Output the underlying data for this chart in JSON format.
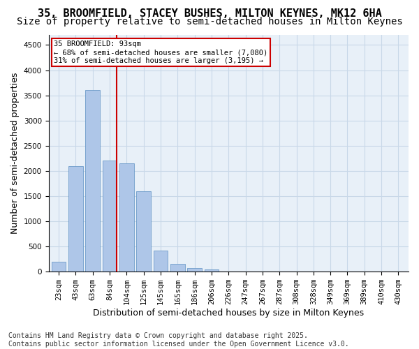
{
  "title1": "35, BROOMFIELD, STACEY BUSHES, MILTON KEYNES, MK12 6HA",
  "title2": "Size of property relative to semi-detached houses in Milton Keynes",
  "xlabel": "Distribution of semi-detached houses by size in Milton Keynes",
  "ylabel": "Number of semi-detached properties",
  "footnote": "Contains HM Land Registry data © Crown copyright and database right 2025.\nContains public sector information licensed under the Open Government Licence v3.0.",
  "bin_labels": [
    "23sqm",
    "43sqm",
    "63sqm",
    "84sqm",
    "104sqm",
    "125sqm",
    "145sqm",
    "165sqm",
    "186sqm",
    "206sqm",
    "226sqm",
    "247sqm",
    "267sqm",
    "287sqm",
    "308sqm",
    "328sqm",
    "349sqm",
    "369sqm",
    "389sqm",
    "410sqm",
    "430sqm"
  ],
  "bar_values": [
    200,
    2100,
    3600,
    2200,
    2150,
    1600,
    420,
    150,
    75,
    50,
    0,
    0,
    0,
    0,
    0,
    0,
    0,
    0,
    0,
    0,
    0
  ],
  "bar_color": "#aec6e8",
  "bar_edge_color": "#5a8fc2",
  "grid_color": "#c8d8e8",
  "background_color": "#e8f0f8",
  "vline_x_index": 3,
  "vline_color": "#cc0000",
  "annotation_title": "35 BROOMFIELD: 93sqm",
  "annotation_line1": "← 68% of semi-detached houses are smaller (7,080)",
  "annotation_line2": "31% of semi-detached houses are larger (3,195) →",
  "annotation_box_edge_color": "#cc0000",
  "ylim": [
    0,
    4700
  ],
  "yticks": [
    0,
    500,
    1000,
    1500,
    2000,
    2500,
    3000,
    3500,
    4000,
    4500
  ],
  "title_fontsize": 11,
  "subtitle_fontsize": 10,
  "tick_fontsize": 7.5,
  "ylabel_fontsize": 9,
  "xlabel_fontsize": 9,
  "footnote_fontsize": 7
}
